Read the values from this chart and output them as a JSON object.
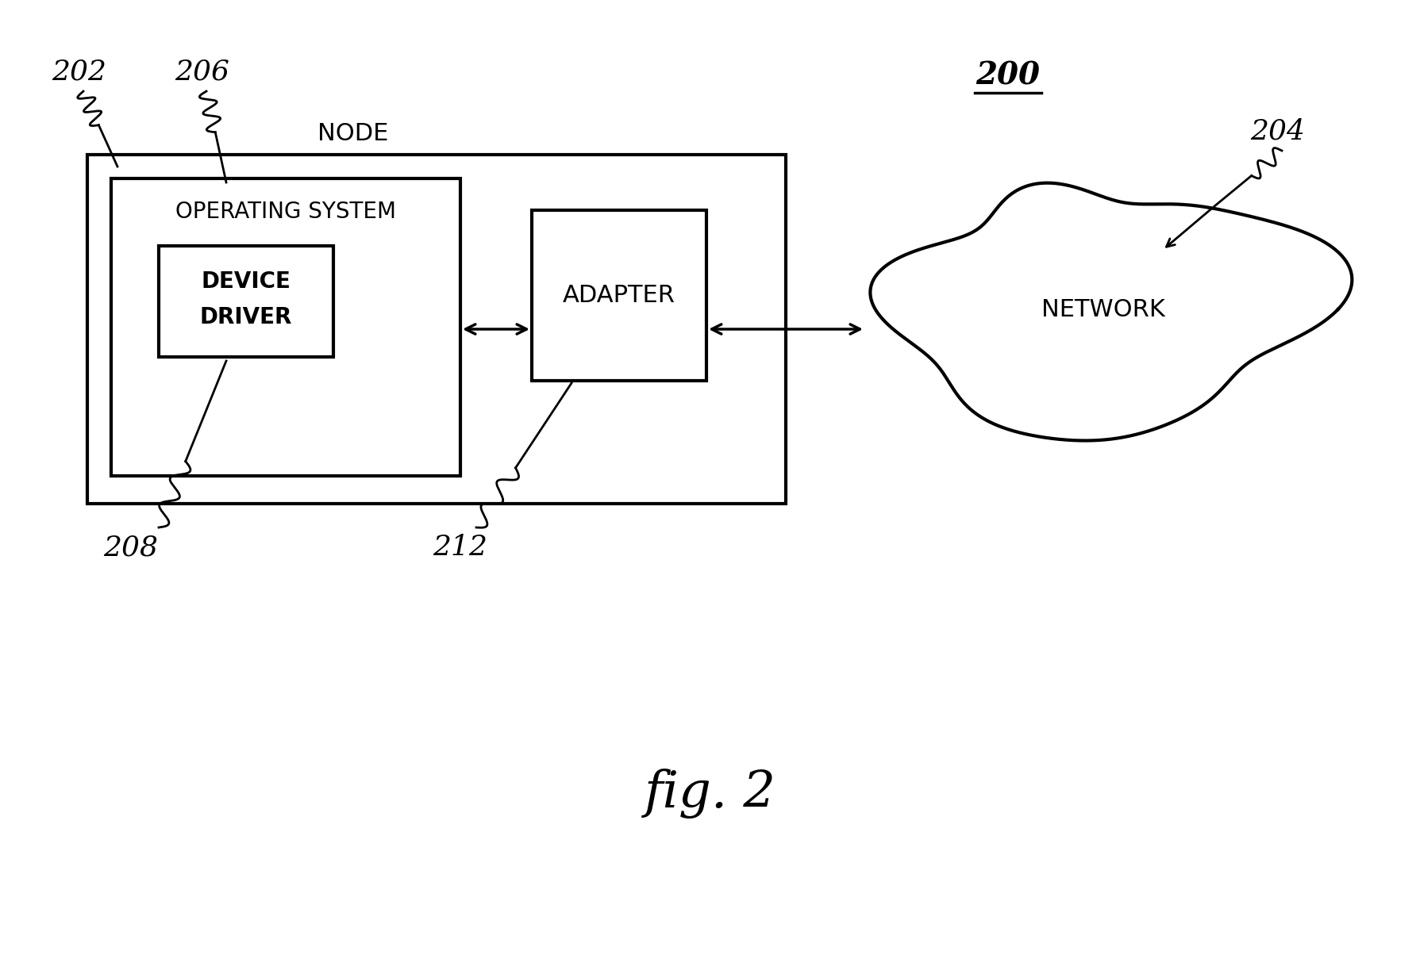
{
  "fig_width": 17.9,
  "fig_height": 12.28,
  "bg_color": "#ffffff",
  "title": "fig. 2",
  "label_200": "200",
  "label_202": "202",
  "label_204": "204",
  "label_206": "206",
  "label_208": "208",
  "label_212": "212",
  "node_label": "NODE",
  "os_label": "OPERATING SYSTEM",
  "dd_label1": "DEVICE",
  "dd_label2": "DRIVER",
  "adapter_label": "ADAPTER",
  "network_label": "NETWORK"
}
